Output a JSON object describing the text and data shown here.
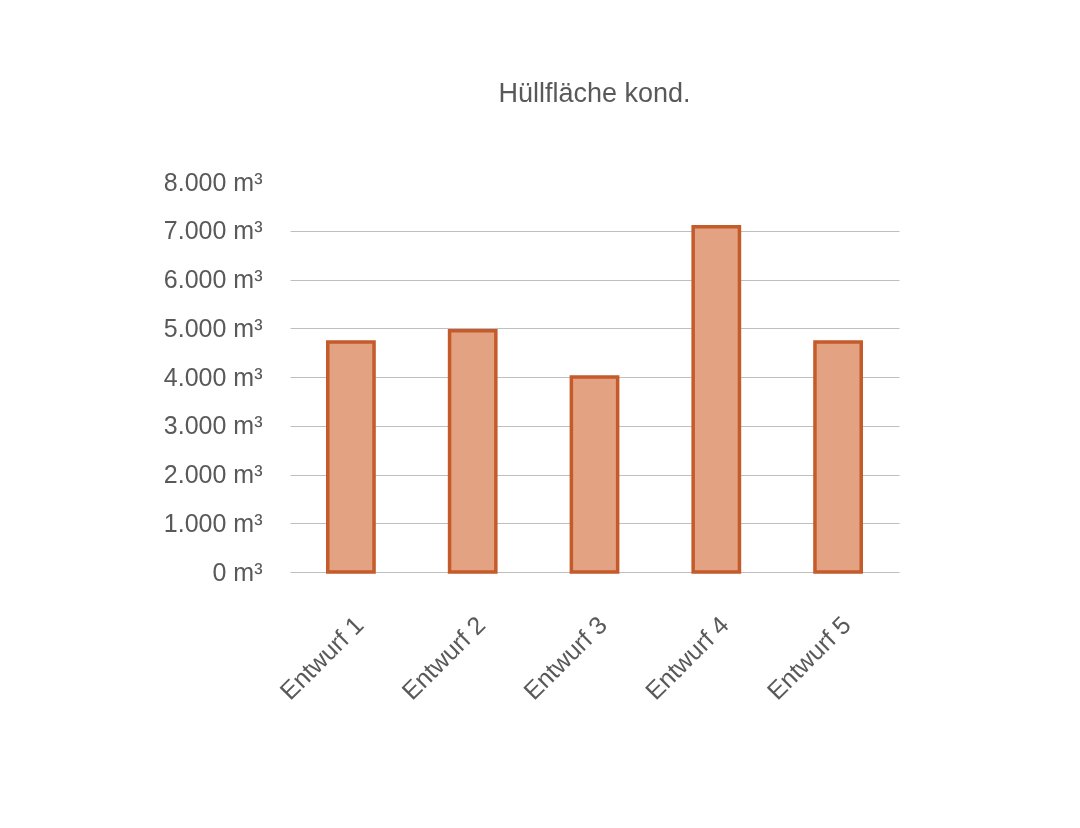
{
  "chart_data": {
    "type": "bar",
    "title": "Hüllfläche kond.",
    "categories": [
      "Entwurf 1",
      "Entwurf 2",
      "Entwurf 3",
      "Entwurf 4",
      "Entwurf 5"
    ],
    "values": [
      4720,
      4950,
      4000,
      7080,
      4720
    ],
    "color": "#e3a281",
    "ylim": [
      0,
      8000
    ],
    "yticks": [
      {
        "value": 0,
        "label": "0 m³"
      },
      {
        "value": 1000,
        "label": "1.000 m³"
      },
      {
        "value": 2000,
        "label": "2.000 m³"
      },
      {
        "value": 3000,
        "label": "3.000 m³"
      },
      {
        "value": 4000,
        "label": "4.000 m³"
      },
      {
        "value": 5000,
        "label": "5.000 m³"
      },
      {
        "value": 6000,
        "label": "6.000 m³"
      },
      {
        "value": 7000,
        "label": "7.000 m³"
      },
      {
        "value": 8000,
        "label": "8.000 m³"
      }
    ],
    "grid": "y"
  }
}
